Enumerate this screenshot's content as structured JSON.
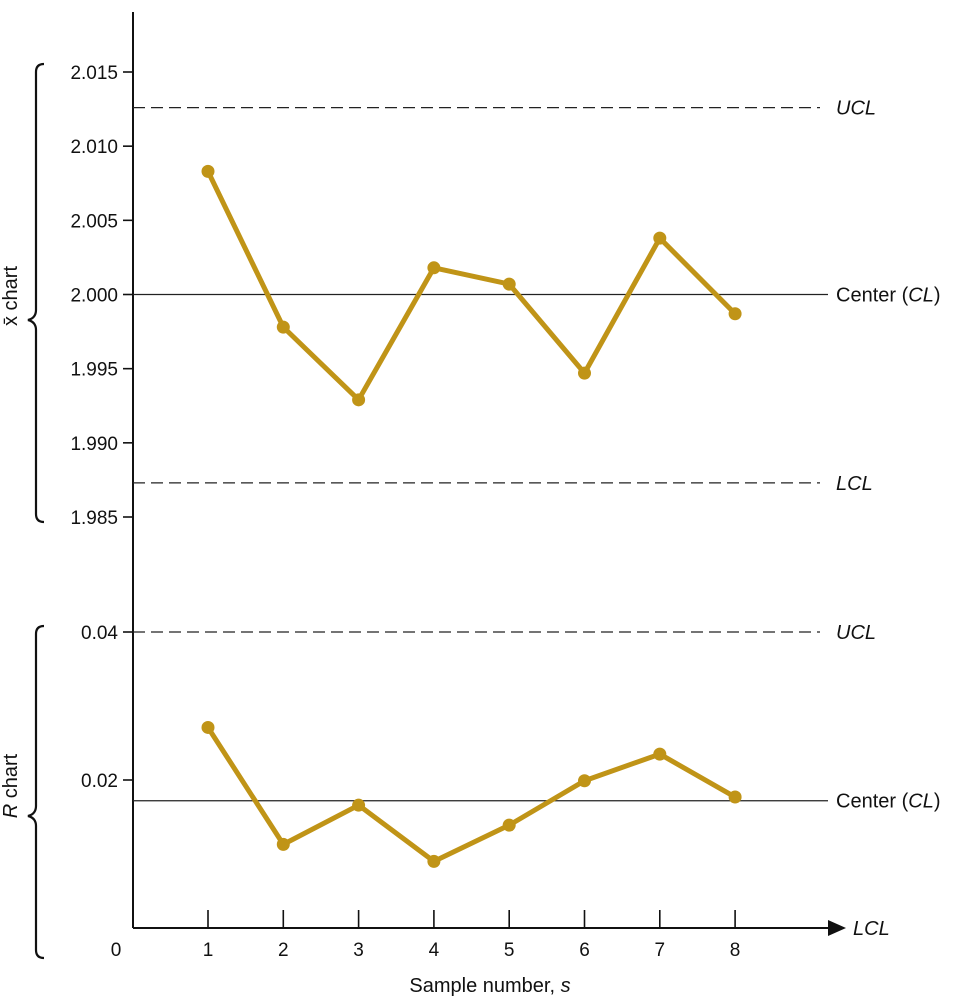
{
  "colors": {
    "series": "#C09417",
    "axis": "#111111",
    "reference": "#222222"
  },
  "chart_data": [
    {
      "id": "xbar",
      "type": "line",
      "side_label": "x̄ chart",
      "x": [
        1,
        2,
        3,
        4,
        5,
        6,
        7,
        8
      ],
      "values": [
        2.0083,
        1.9978,
        1.9929,
        2.0018,
        2.0007,
        1.9947,
        2.0038,
        1.9987
      ],
      "ylim": [
        1.985,
        2.017
      ],
      "y_ticks": [
        2.015,
        2.01,
        2.005,
        2.0,
        1.995,
        1.99,
        1.985
      ],
      "y_tick_labels": [
        "2.015",
        "2.010",
        "2.005",
        "2.000",
        "1.995",
        "1.990",
        "1.985"
      ],
      "reference_lines": [
        {
          "value": 2.0126,
          "style": "dashed",
          "label": "UCL"
        },
        {
          "value": 2.0,
          "style": "solid",
          "label_prefix": "Center (",
          "label_italic": "CL",
          "label_suffix": ")"
        },
        {
          "value": 1.9873,
          "style": "dashed",
          "label": "LCL"
        }
      ],
      "grid": false
    },
    {
      "id": "range",
      "type": "line",
      "side_label_italic": "R",
      "side_label": " chart",
      "x": [
        1,
        2,
        3,
        4,
        5,
        6,
        7,
        8
      ],
      "values": [
        0.0271,
        0.0113,
        0.0166,
        0.009,
        0.0139,
        0.0199,
        0.0235,
        0.0177
      ],
      "ylim": [
        0,
        0.04
      ],
      "y_ticks": [
        0.04,
        0.02,
        0
      ],
      "y_tick_labels": [
        "0.04",
        "0.02",
        "0"
      ],
      "reference_lines": [
        {
          "value": 0.04,
          "style": "dashed",
          "label": "UCL"
        },
        {
          "value": 0.0172,
          "style": "solid",
          "label_prefix": "Center (",
          "label_italic": "CL",
          "label_suffix": ")"
        },
        {
          "value": 0,
          "style": "arrow",
          "label": "LCL"
        }
      ],
      "x_tick_labels": [
        "1",
        "2",
        "3",
        "4",
        "5",
        "6",
        "7",
        "8"
      ],
      "xlabel_prefix": "Sample number, ",
      "xlabel_italic": "s",
      "grid": false
    }
  ]
}
